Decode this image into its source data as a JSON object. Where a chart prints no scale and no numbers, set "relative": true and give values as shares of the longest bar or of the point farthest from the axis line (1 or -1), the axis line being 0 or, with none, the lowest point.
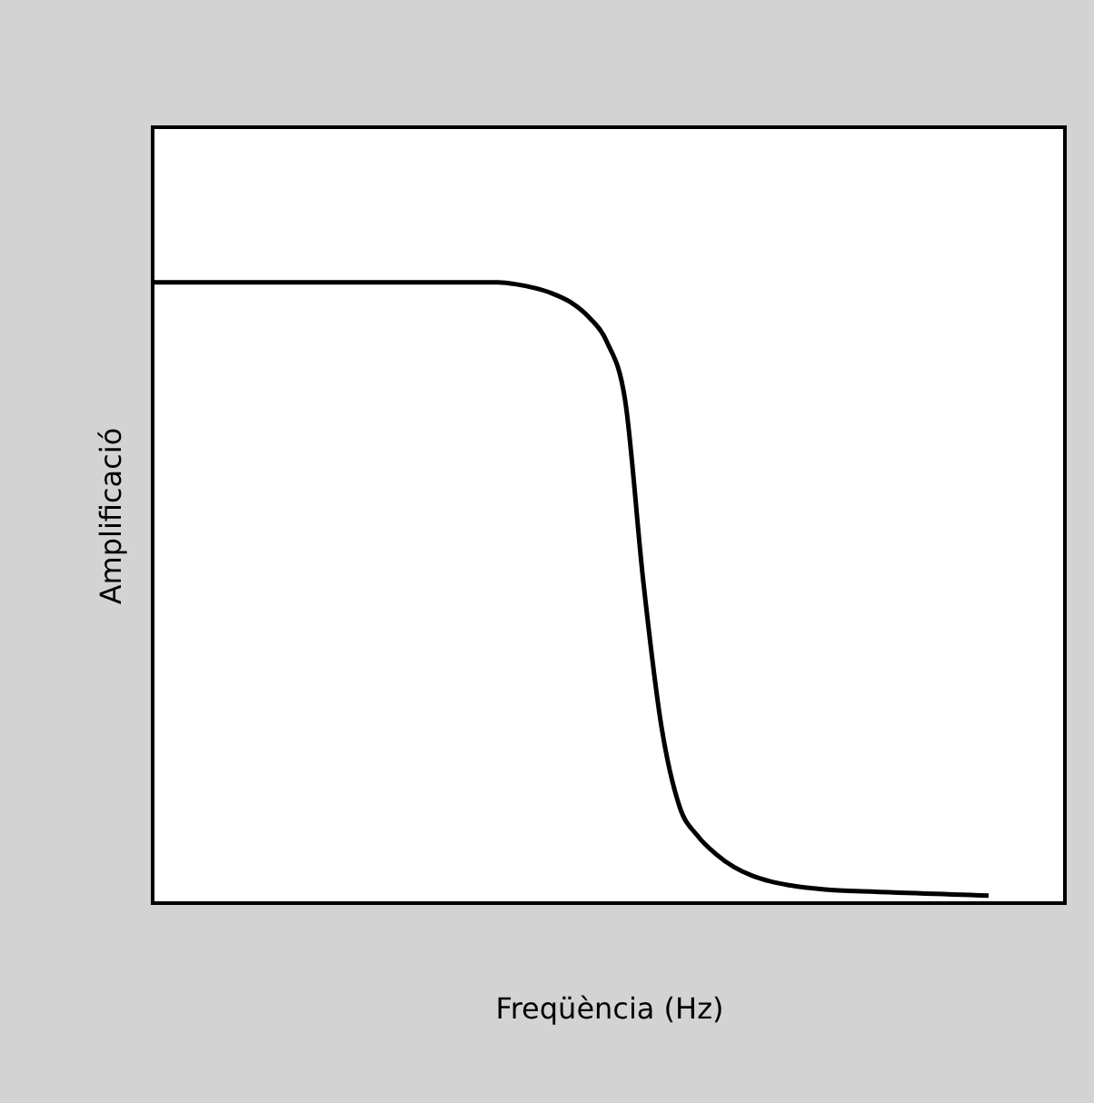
{
  "chart_data": {
    "type": "line",
    "relative": true,
    "xlabel": "Freqüència (Hz)",
    "ylabel": "Amplificació",
    "grid": false,
    "marker": "none",
    "line_style": "solid",
    "categories": [
      null,
      null,
      null,
      null,
      null,
      null,
      null,
      null,
      null,
      null,
      null,
      null,
      null,
      null,
      null,
      null,
      null,
      null,
      null,
      null,
      null,
      null,
      null,
      null,
      null,
      null,
      null,
      null,
      null,
      null,
      null,
      null,
      null,
      null,
      null,
      null,
      null,
      null,
      null,
      null,
      null,
      null,
      null,
      null,
      null,
      null,
      null
    ],
    "series": [
      {
        "color": "#000000",
        "values": [
          1,
          1,
          1,
          1,
          1,
          1,
          1,
          1,
          1,
          1,
          1,
          1,
          1,
          1,
          1,
          1,
          1,
          1,
          1,
          1,
          0.997,
          0.991,
          0.982,
          0.968,
          0.944,
          0.904,
          0.81,
          0.518,
          0.284,
          0.155,
          0.108,
          0.079,
          0.058,
          0.044,
          0.035,
          0.029,
          0.025,
          0.022,
          0.02,
          0.019,
          0.018,
          0.017,
          0.016,
          0.015,
          0.014,
          0.013,
          0.012
        ]
      }
    ]
  }
}
